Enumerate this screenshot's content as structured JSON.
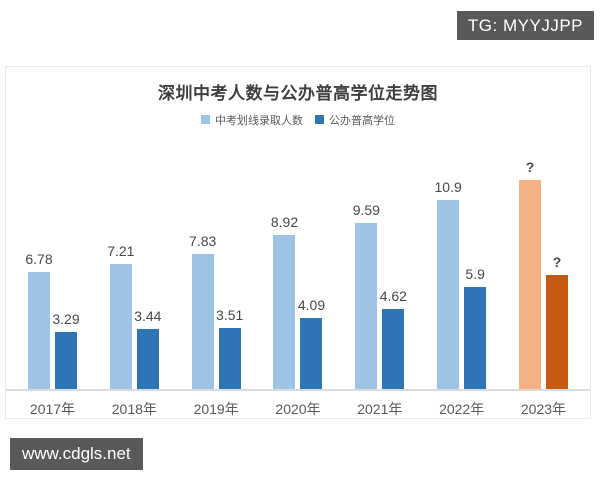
{
  "badges": {
    "tg": "TG: MYYJJPP",
    "site": "www.cdgls.net"
  },
  "colors": {
    "badge_bg": "#595959",
    "badge_text": "#ffffff",
    "light_blue": "#9DC3E6",
    "dark_blue": "#2E75B6",
    "light_orange": "#F4B183",
    "dark_orange": "#C55A11",
    "axis_line": "#dbdbdb",
    "title_text": "#3f3f3f"
  },
  "chart_data": {
    "type": "bar",
    "title": "深圳中考人数与公办普高学位走势图",
    "categories": [
      "2017年",
      "2018年",
      "2019年",
      "2020年",
      "2021年",
      "2022年",
      "2023年"
    ],
    "series": [
      {
        "name": "中考划线录取人数",
        "values": [
          6.78,
          7.21,
          7.83,
          8.92,
          9.59,
          10.9,
          null
        ],
        "data_labels": [
          "6.78",
          "7.21",
          "7.83",
          "8.92",
          "9.59",
          "10.9",
          "?"
        ],
        "bar_colors": [
          "#9DC3E6",
          "#9DC3E6",
          "#9DC3E6",
          "#9DC3E6",
          "#9DC3E6",
          "#9DC3E6",
          "#F4B183"
        ],
        "visual_values_with_estimates": [
          6.78,
          7.21,
          7.83,
          8.92,
          9.59,
          10.9,
          12.1
        ]
      },
      {
        "name": "公办普高学位",
        "values": [
          3.29,
          3.44,
          3.51,
          4.09,
          4.62,
          5.9,
          null
        ],
        "data_labels": [
          "3.29",
          "3.44",
          "3.51",
          "4.09",
          "4.62",
          "5.9",
          "?"
        ],
        "bar_colors": [
          "#2E75B6",
          "#2E75B6",
          "#2E75B6",
          "#2E75B6",
          "#2E75B6",
          "#2E75B6",
          "#C55A11"
        ],
        "visual_values_with_estimates": [
          3.29,
          3.44,
          3.51,
          4.09,
          4.62,
          5.9,
          6.6
        ]
      }
    ],
    "ylim": [
      0,
      12.5
    ],
    "grid": false,
    "legend_position": "top-center",
    "value_labels_shown": true,
    "unknown_value_marker": "?"
  }
}
